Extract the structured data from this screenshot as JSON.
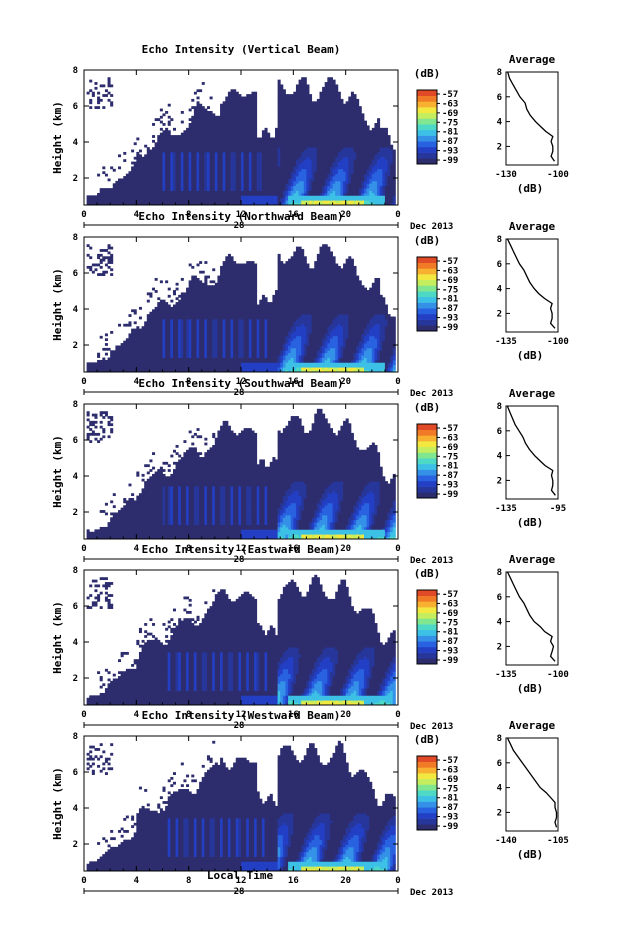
{
  "figure": {
    "xlabel": "Local Time",
    "date_label": "28",
    "month_label": "Dec 2013",
    "colorbar_unit": "(dB)",
    "colorbar_ticks": [
      "-57",
      "-63",
      "-69",
      "-75",
      "-81",
      "-87",
      "-93",
      "-99"
    ],
    "colors": [
      "#2d2d6e",
      "#26369a",
      "#233fc4",
      "#2962e0",
      "#3591e8",
      "#3cc0e6",
      "#4ed9c6",
      "#80e690",
      "#c4ee5e",
      "#f2e840",
      "#f8b030",
      "#f07a26",
      "#e04a26"
    ]
  },
  "chart_data": [
    {
      "type": "heatmap",
      "title": "Echo Intensity (Vertical Beam)",
      "ylabel": "Height (km)",
      "x_ticks": [
        "0",
        "4",
        "8",
        "12",
        "16",
        "20",
        "0"
      ],
      "y_ticks": [
        "2",
        "4",
        "6",
        "8"
      ],
      "x_range_hours": [
        0,
        24
      ],
      "y_range_km": [
        0.5,
        8.0
      ],
      "colorbar_range_db": [
        -99,
        -57
      ],
      "profile": {
        "title": "Average",
        "xlabel": "(dB)",
        "xlim": [
          -130,
          -100
        ],
        "x_ticks": [
          "-130",
          "-100"
        ],
        "y_ticks": [
          "2",
          "4",
          "6",
          "8"
        ],
        "ylim": [
          0.5,
          8.0
        ],
        "heights_km": [
          0.8,
          1.2,
          1.6,
          2.0,
          2.4,
          2.8,
          3.2,
          3.6,
          4.0,
          4.5,
          5.0,
          5.5,
          6.0,
          6.5,
          7.0,
          7.5,
          8.0
        ],
        "values_db": [
          -102,
          -104,
          -103,
          -103,
          -104,
          -103,
          -107,
          -110,
          -113,
          -116,
          -118,
          -119,
          -122,
          -124,
          -126,
          -128,
          -129
        ]
      }
    },
    {
      "type": "heatmap",
      "title": "Echo Intensity (Northward Beam)",
      "ylabel": "Height (km)",
      "x_ticks": [
        "0",
        "4",
        "8",
        "12",
        "16",
        "20",
        "0"
      ],
      "y_ticks": [
        "2",
        "4",
        "6",
        "8"
      ],
      "x_range_hours": [
        0,
        24
      ],
      "y_range_km": [
        0.5,
        8.0
      ],
      "colorbar_range_db": [
        -99,
        -57
      ],
      "profile": {
        "title": "Average",
        "xlabel": "(dB)",
        "xlim": [
          -135,
          -100
        ],
        "x_ticks": [
          "-135",
          "-100"
        ],
        "y_ticks": [
          "2",
          "4",
          "6",
          "8"
        ],
        "ylim": [
          0.5,
          8.0
        ],
        "heights_km": [
          0.8,
          1.2,
          1.6,
          2.0,
          2.4,
          2.8,
          3.2,
          3.6,
          4.0,
          4.5,
          5.0,
          5.5,
          6.0,
          6.5,
          7.0,
          7.5,
          8.0
        ],
        "values_db": [
          -102,
          -105,
          -104,
          -104,
          -105,
          -104,
          -109,
          -113,
          -116,
          -119,
          -121,
          -123,
          -126,
          -128,
          -130,
          -132,
          -134
        ]
      }
    },
    {
      "type": "heatmap",
      "title": "Echo Intensity (Southward Beam)",
      "ylabel": "Height (km)",
      "x_ticks": [
        "0",
        "4",
        "8",
        "12",
        "16",
        "20",
        "0"
      ],
      "y_ticks": [
        "2",
        "4",
        "6",
        "8"
      ],
      "x_range_hours": [
        0,
        24
      ],
      "y_range_km": [
        0.5,
        8.0
      ],
      "colorbar_range_db": [
        -99,
        -57
      ],
      "profile": {
        "title": "Average",
        "xlabel": "(dB)",
        "xlim": [
          -135,
          -95
        ],
        "x_ticks": [
          "-135",
          "-95"
        ],
        "y_ticks": [
          "2",
          "4",
          "6",
          "8"
        ],
        "ylim": [
          0.5,
          8.0
        ],
        "heights_km": [
          0.8,
          1.2,
          1.6,
          2.0,
          2.4,
          2.8,
          3.2,
          3.6,
          4.0,
          4.5,
          5.0,
          5.5,
          6.0,
          6.5,
          7.0,
          7.5,
          8.0
        ],
        "values_db": [
          -97,
          -100,
          -99,
          -99,
          -100,
          -99,
          -105,
          -109,
          -113,
          -117,
          -120,
          -122,
          -125,
          -128,
          -130,
          -132,
          -134
        ]
      }
    },
    {
      "type": "heatmap",
      "title": "Echo Intensity (Eastward Beam)",
      "ylabel": "Height (km)",
      "x_ticks": [
        "0",
        "4",
        "8",
        "12",
        "16",
        "20",
        "0"
      ],
      "y_ticks": [
        "2",
        "4",
        "6",
        "8"
      ],
      "x_range_hours": [
        0,
        24
      ],
      "y_range_km": [
        0.5,
        8.0
      ],
      "colorbar_range_db": [
        -99,
        -57
      ],
      "profile": {
        "title": "Average",
        "xlabel": "(dB)",
        "xlim": [
          -135,
          -100
        ],
        "x_ticks": [
          "-135",
          "-100"
        ],
        "y_ticks": [
          "2",
          "4",
          "6",
          "8"
        ],
        "ylim": [
          0.5,
          8.0
        ],
        "heights_km": [
          0.8,
          1.2,
          1.6,
          2.0,
          2.4,
          2.8,
          3.2,
          3.6,
          4.0,
          4.5,
          5.0,
          5.5,
          6.0,
          6.5,
          7.0,
          7.5,
          8.0
        ],
        "values_db": [
          -102,
          -105,
          -104,
          -103,
          -105,
          -104,
          -109,
          -112,
          -116,
          -119,
          -121,
          -123,
          -126,
          -128,
          -130,
          -132,
          -134
        ]
      }
    },
    {
      "type": "heatmap",
      "title": "Echo Intensity (Westward Beam)",
      "ylabel": "Height (km)",
      "x_ticks": [
        "0",
        "4",
        "8",
        "12",
        "16",
        "20",
        "0"
      ],
      "y_ticks": [
        "2",
        "4",
        "6",
        "8"
      ],
      "x_range_hours": [
        0,
        24
      ],
      "y_range_km": [
        0.5,
        8.0
      ],
      "colorbar_range_db": [
        -99,
        -57
      ],
      "profile": {
        "title": "Average",
        "xlabel": "(dB)",
        "xlim": [
          -140,
          -105
        ],
        "x_ticks": [
          "-140",
          "-105"
        ],
        "y_ticks": [
          "2",
          "4",
          "6",
          "8"
        ],
        "ylim": [
          0.5,
          8.0
        ],
        "heights_km": [
          0.8,
          1.2,
          1.6,
          2.0,
          2.4,
          2.8,
          3.2,
          3.6,
          4.0,
          4.5,
          5.0,
          5.5,
          6.0,
          6.5,
          7.0,
          7.5,
          8.0
        ],
        "values_db": [
          -106,
          -107,
          -106,
          -106,
          -107,
          -107,
          -110,
          -113,
          -117,
          -120,
          -123,
          -126,
          -129,
          -132,
          -135,
          -137,
          -139
        ]
      }
    }
  ]
}
